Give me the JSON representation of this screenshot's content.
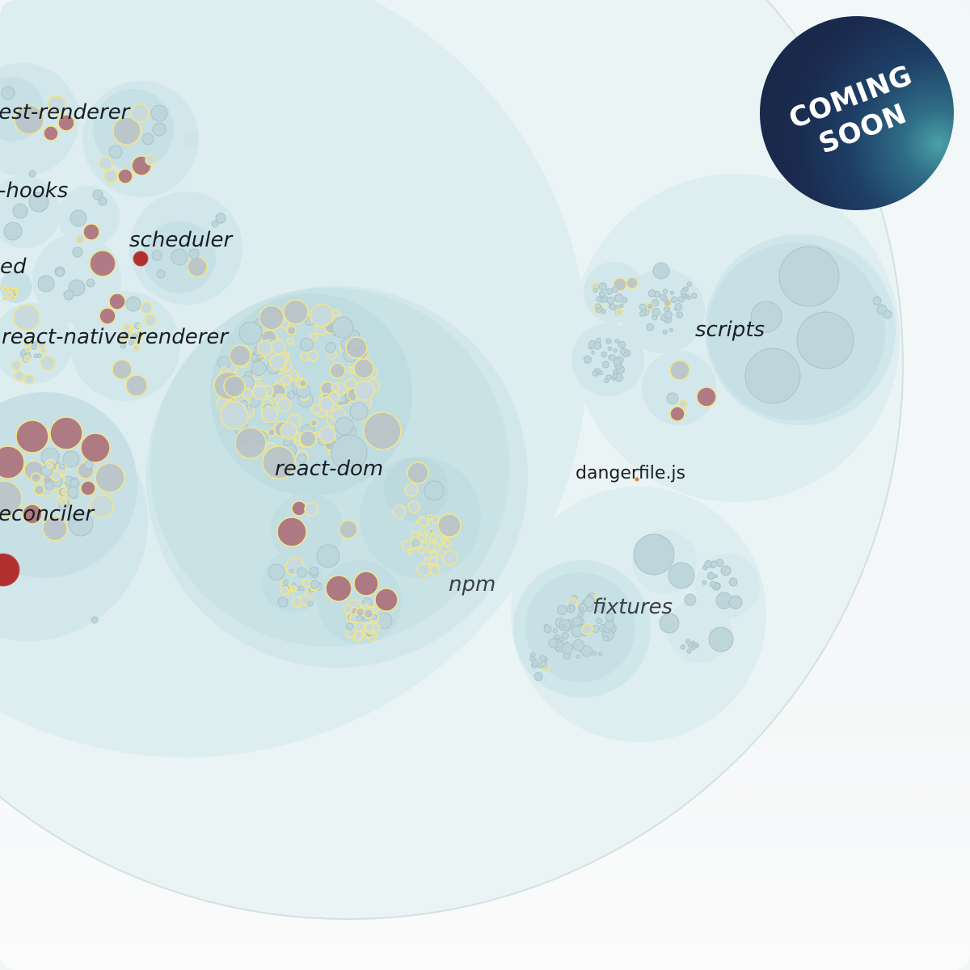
{
  "badge": {
    "line1": "COMING",
    "line2": "SOON"
  },
  "labels": {
    "test_renderer": "test-renderer",
    "hooks": "-hooks",
    "scheduler": "scheduler",
    "shared": "ed",
    "react_native_renderer": "react-native-renderer",
    "react_dom": "react-dom",
    "reconciler": "econciler",
    "npm": "npm",
    "scripts": "scripts",
    "dangerfile": "dangerfile.js",
    "fixtures": "fixtures"
  },
  "colors": {
    "folder_fill": "#cfe6ea",
    "file_neutral": "#b9c1c6",
    "file_changed_stroke": "#efe68a",
    "file_hot": "#a8606a",
    "file_hottest": "#b03030",
    "badge_dark": "#172545",
    "badge_accent": "#4aa0a8"
  }
}
